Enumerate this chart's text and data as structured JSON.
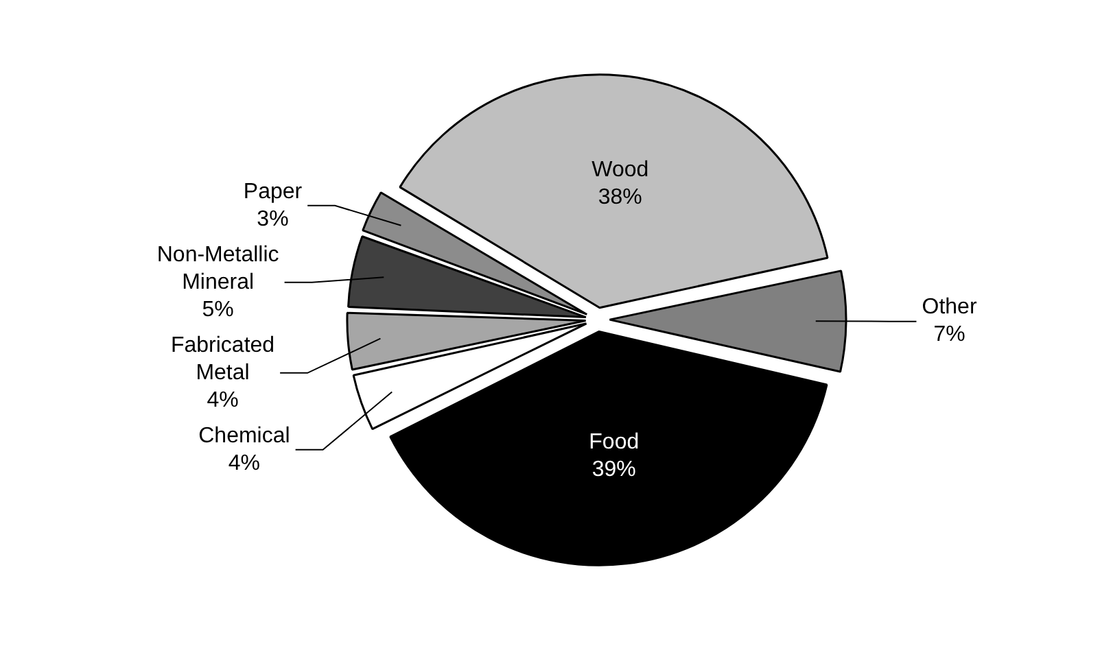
{
  "chart_data": {
    "type": "pie",
    "categories": [
      "Wood",
      "Other",
      "Food",
      "Chemical",
      "Fabricated Metal",
      "Non-Metallic Mineral",
      "Paper"
    ],
    "values": [
      38,
      7,
      39,
      4,
      4,
      5,
      3
    ],
    "value_labels": [
      "38%",
      "7%",
      "39%",
      "4%",
      "4%",
      "5%",
      "3%"
    ],
    "colors": [
      "#bfbfbf",
      "#808080",
      "#000000",
      "#ffffff",
      "#a6a6a6",
      "#404040",
      "#8c8c8c"
    ],
    "legend": false
  }
}
